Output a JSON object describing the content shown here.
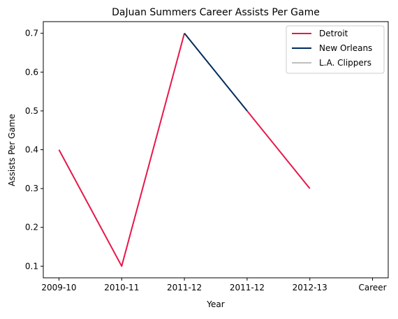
{
  "chart_data": {
    "type": "line",
    "title": "DaJuan Summers Career Assists Per Game",
    "xlabel": "Year",
    "ylabel": "Assists Per Game",
    "categories": [
      "2009-10",
      "2010-11",
      "2011-12",
      "2011-12",
      "2012-13",
      "Career"
    ],
    "x_tick_values": [
      0,
      1,
      2,
      3,
      4,
      5
    ],
    "ylim": [
      0.07,
      0.73
    ],
    "y_ticks": [
      0.1,
      0.2,
      0.3,
      0.4,
      0.5,
      0.6,
      0.7
    ],
    "y_tick_labels": [
      "0.1",
      "0.2",
      "0.3",
      "0.4",
      "0.5",
      "0.6",
      "0.7"
    ],
    "grid": false,
    "legend_position": "top-right",
    "series": [
      {
        "name": "Detroit",
        "color": "#e8174a",
        "segments": [
          [
            [
              0,
              0.4
            ],
            [
              1,
              0.1
            ],
            [
              2,
              0.7
            ]
          ],
          [
            [
              3,
              0.5
            ],
            [
              4,
              0.3
            ]
          ]
        ]
      },
      {
        "name": "New Orleans",
        "color": "#002b5c",
        "segments": [
          [
            [
              2,
              0.7
            ],
            [
              3,
              0.5
            ]
          ]
        ]
      },
      {
        "name": "L.A. Clippers",
        "color": "#bfbfbf",
        "segments": []
      }
    ]
  }
}
